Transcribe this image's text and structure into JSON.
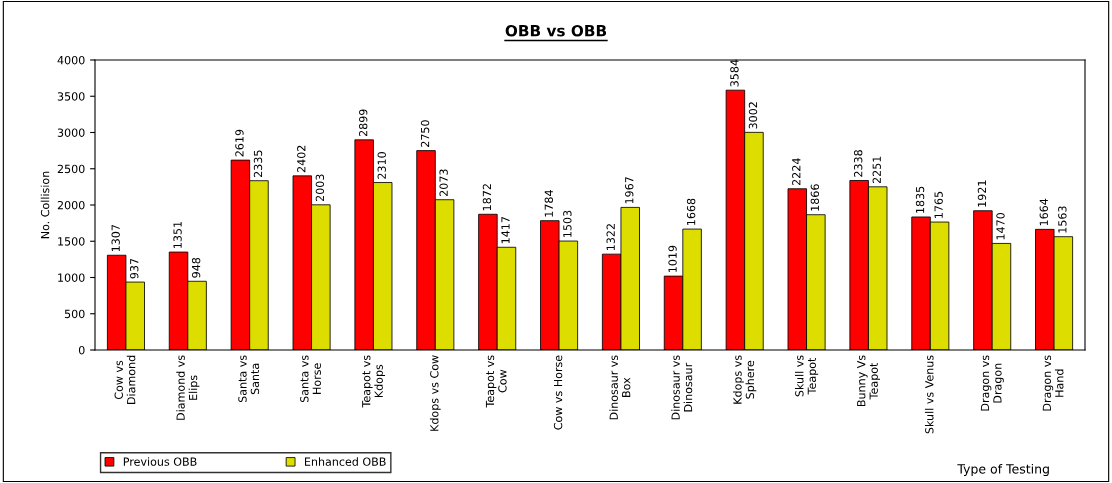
{
  "chart_data": {
    "type": "bar",
    "title": "OBB vs OBB",
    "xlabel": "Type of Testing",
    "ylabel": "No. Collision",
    "categories": [
      "Cow vs\nDiamond",
      "Diamond vs\nElips",
      "Santa vs\nSanta",
      "Santa vs\nHorse",
      "Teapot vs\nKdops",
      "Kdops vs Cow",
      "Teapot vs\nCow",
      "Cow vs Horse",
      "Dinosaur vs\nBox",
      "Dinosaur vs\nDinosaur",
      "Kdops vs\nSphere",
      "Skull vs\nTeapot",
      "Bunny Vs\nTeapot",
      "Skull vs Venus",
      "Dragon vs\nDragon",
      "Dragon vs\nHand"
    ],
    "series": [
      {
        "name": "Previous OBB",
        "color": "#ff0000",
        "values": [
          1307,
          1351,
          2619,
          2402,
          2899,
          2750,
          1872,
          1784,
          1322,
          1019,
          3584,
          2224,
          2338,
          1835,
          1921,
          1664
        ]
      },
      {
        "name": "Enhanced OBB",
        "color": "#dddd00",
        "values": [
          937,
          948,
          2335,
          2003,
          2310,
          2073,
          1417,
          1503,
          1967,
          1668,
          3002,
          1866,
          2251,
          1765,
          1470,
          1563
        ]
      }
    ],
    "ylim": [
      0,
      4000
    ],
    "yticks": [
      0,
      500,
      1000,
      1500,
      2000,
      2500,
      3000,
      3500,
      4000
    ],
    "data_labels": true,
    "legend": "bottom left",
    "grid": false
  }
}
